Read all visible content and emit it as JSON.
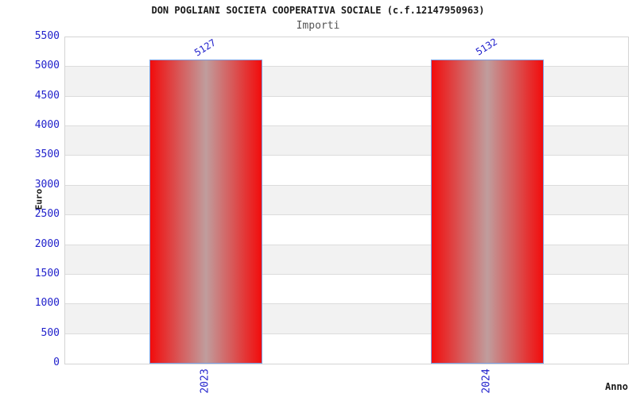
{
  "chart_data": {
    "type": "bar",
    "title": "DON POGLIANI SOCIETA COOPERATIVA SOCIALE (c.f.12147950963)",
    "subtitle": "Importi",
    "xlabel": "Anno",
    "ylabel": "Euro",
    "categories": [
      "2023",
      "2024"
    ],
    "values": [
      5127,
      5132
    ],
    "bar_labels": [
      "5127",
      "5132"
    ],
    "ylim": [
      0,
      5500
    ],
    "ytick_step": 500,
    "yticks": [
      0,
      500,
      1000,
      1500,
      2000,
      2500,
      3000,
      3500,
      4000,
      4500,
      5000,
      5500
    ],
    "grid": "horizontal",
    "band_shading": true,
    "legend": "none"
  },
  "colors": {
    "bar_red": "#f20c0c",
    "bar_center": "#c09d9d",
    "bar_border": "#7d9ee0",
    "tick_label_blue": "#2222cc",
    "title_black": "#1a1a1a",
    "subtitle_gray": "#555555",
    "band_gray": "#f2f2f2",
    "gridline_gray": "#dcdcdc",
    "plot_border_gray": "#d4d4d4"
  }
}
